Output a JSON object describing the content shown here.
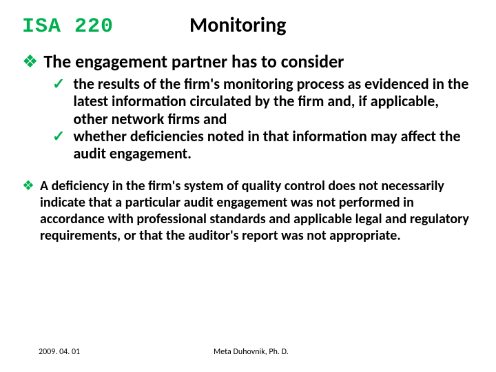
{
  "header": {
    "isa_label": "ISA 220",
    "title": "Monitoring"
  },
  "colors": {
    "accent": "#00b050",
    "text": "#000000",
    "background": "#ffffff"
  },
  "typography": {
    "isa_font": "Courier New",
    "body_font": "Calibri",
    "title_size_pt": 30,
    "main_bullet_size_pt": 26,
    "sub_bullet_size_pt": 22,
    "second_block_size_pt": 20,
    "footer_size_pt": 12
  },
  "bullet_markers": {
    "diamond": "❖",
    "check": "✓"
  },
  "block1": {
    "lead": "The engagement partner has to consider",
    "items": [
      "the results of the firm's monitoring process as evidenced in the latest information circulated by the firm and, if applicable, other network firms and",
      "whether deficiencies noted in that information may affect the audit engagement."
    ]
  },
  "block2": {
    "text": "A deficiency in the firm's system of quality control does not necessarily indicate that a particular audit engagement was not performed in accordance with professional standards and applicable legal and regulatory requirements, or that the auditor's report was not appropriate."
  },
  "footer": {
    "date": "2009. 04. 01",
    "author": "Meta Duhovnik, Ph. D."
  }
}
